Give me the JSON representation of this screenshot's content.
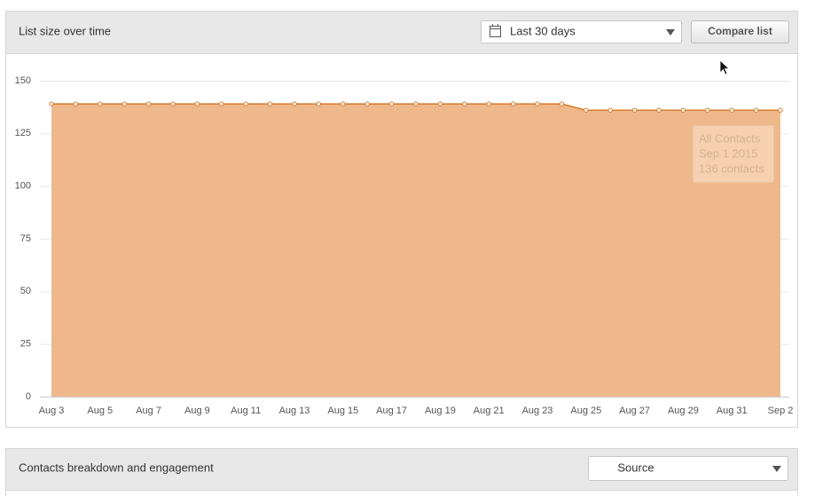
{
  "header": {
    "title": "List size over time",
    "date_range": "Last 30 days",
    "compare_button": "Compare list"
  },
  "chart_data": {
    "type": "area",
    "categories": [
      "Aug 3",
      null,
      "Aug 5",
      null,
      "Aug 7",
      null,
      "Aug 9",
      null,
      "Aug 11",
      null,
      "Aug 13",
      null,
      "Aug 15",
      null,
      "Aug 17",
      null,
      "Aug 19",
      null,
      "Aug 21",
      null,
      "Aug 23",
      null,
      "Aug 25",
      null,
      "Aug 27",
      null,
      "Aug 29",
      null,
      "Aug 31",
      null,
      "Sep 2"
    ],
    "series": [
      {
        "name": "All Contacts",
        "color": "#d8792a",
        "fill": "#efb88b",
        "values": [
          139,
          139,
          139,
          139,
          139,
          139,
          139,
          139,
          139,
          139,
          139,
          139,
          139,
          139,
          139,
          139,
          139,
          139,
          139,
          139,
          139,
          139,
          136,
          136,
          136,
          136,
          136,
          136,
          136,
          136,
          136
        ]
      }
    ],
    "ylim": [
      0,
      150
    ],
    "yticks": [
      0,
      25,
      50,
      75,
      100,
      125,
      150
    ],
    "grid": true,
    "tooltip": {
      "date": "Sep 1 2015",
      "count": "136 contacts"
    }
  },
  "section2": {
    "title": "Contacts breakdown and engagement",
    "dropdown": "Source"
  }
}
